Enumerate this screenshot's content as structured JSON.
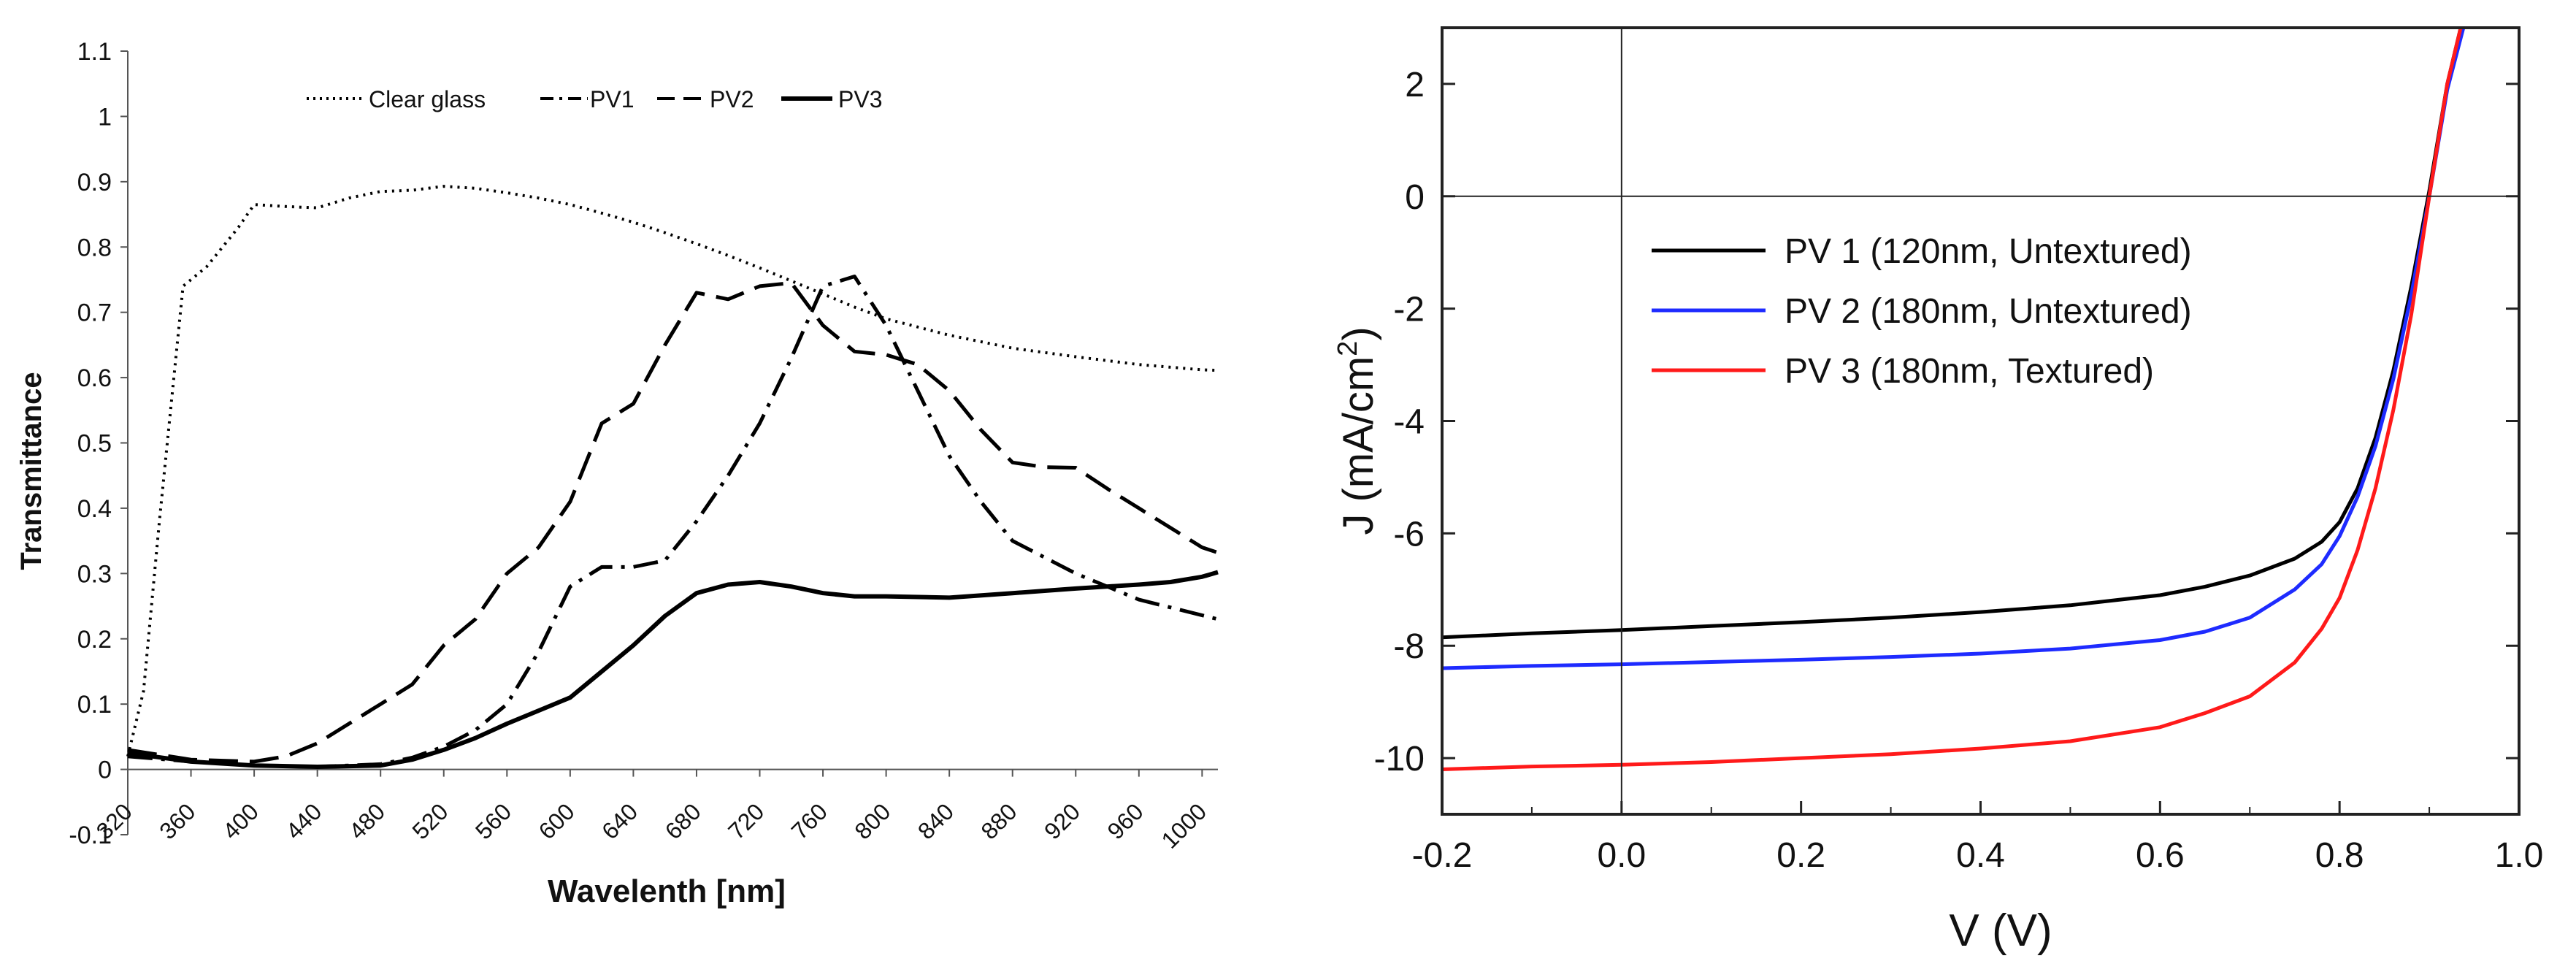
{
  "colors": {
    "background": "#ffffff",
    "axis": "#222222",
    "tick_text": "#111111",
    "left_series": "#000000",
    "pv1_black": "#000000",
    "pv2_blue": "#1e2bff",
    "pv3_red": "#ff1a1a"
  },
  "chart_data": [
    {
      "type": "line",
      "title": "",
      "xlabel": "Wavelenth [nm]",
      "ylabel": "Transmittance",
      "xlim": [
        320,
        1010
      ],
      "ylim": [
        -0.1,
        1.1
      ],
      "grid": false,
      "legend_position": "top-center",
      "x_ticks": [
        "320",
        "360",
        "400",
        "440",
        "480",
        "520",
        "560",
        "600",
        "640",
        "680",
        "720",
        "760",
        "800",
        "840",
        "880",
        "920",
        "960",
        "1000"
      ],
      "y_ticks": [
        "-0.1",
        "0",
        "0.1",
        "0.2",
        "0.3",
        "0.4",
        "0.5",
        "0.6",
        "0.7",
        "0.8",
        "0.9",
        "1",
        "1.1"
      ],
      "series": [
        {
          "name": "Clear glass",
          "style": "dotted",
          "x": [
            320,
            330,
            340,
            355,
            370,
            390,
            400,
            420,
            440,
            460,
            480,
            500,
            520,
            540,
            560,
            580,
            600,
            620,
            640,
            660,
            680,
            700,
            720,
            740,
            760,
            780,
            800,
            840,
            880,
            920,
            960,
            1000,
            1010
          ],
          "y": [
            0.02,
            0.12,
            0.38,
            0.74,
            0.77,
            0.83,
            0.865,
            0.862,
            0.86,
            0.875,
            0.885,
            0.887,
            0.893,
            0.89,
            0.883,
            0.875,
            0.865,
            0.852,
            0.838,
            0.822,
            0.805,
            0.787,
            0.768,
            0.748,
            0.728,
            0.708,
            0.69,
            0.665,
            0.645,
            0.632,
            0.62,
            0.612,
            0.611
          ]
        },
        {
          "name": "PV1",
          "style": "dashdot",
          "x": [
            320,
            360,
            400,
            440,
            480,
            500,
            520,
            540,
            560,
            580,
            600,
            620,
            640,
            660,
            680,
            700,
            720,
            740,
            760,
            780,
            800,
            820,
            840,
            860,
            880,
            920,
            960,
            1010
          ],
          "y": [
            0.02,
            0.012,
            0.006,
            0.004,
            0.008,
            0.018,
            0.035,
            0.06,
            0.1,
            0.18,
            0.28,
            0.31,
            0.31,
            0.32,
            0.38,
            0.45,
            0.53,
            0.63,
            0.74,
            0.755,
            0.68,
            0.58,
            0.48,
            0.41,
            0.35,
            0.3,
            0.26,
            0.23
          ]
        },
        {
          "name": "PV2",
          "style": "dashed",
          "x": [
            320,
            360,
            400,
            420,
            440,
            460,
            480,
            500,
            520,
            540,
            560,
            580,
            600,
            620,
            640,
            660,
            680,
            700,
            720,
            740,
            760,
            780,
            800,
            820,
            840,
            860,
            880,
            900,
            920,
            940,
            960,
            980,
            1000,
            1010
          ],
          "y": [
            0.03,
            0.015,
            0.012,
            0.02,
            0.04,
            0.07,
            0.1,
            0.13,
            0.19,
            0.23,
            0.3,
            0.34,
            0.41,
            0.53,
            0.56,
            0.65,
            0.73,
            0.72,
            0.74,
            0.745,
            0.68,
            0.64,
            0.635,
            0.62,
            0.58,
            0.52,
            0.47,
            0.463,
            0.462,
            0.43,
            0.4,
            0.37,
            0.34,
            0.332
          ]
        },
        {
          "name": "PV3",
          "style": "solid",
          "x": [
            320,
            360,
            400,
            440,
            480,
            500,
            520,
            540,
            560,
            580,
            600,
            620,
            640,
            660,
            680,
            700,
            720,
            740,
            760,
            780,
            800,
            840,
            880,
            920,
            960,
            980,
            1000,
            1010
          ],
          "y": [
            0.025,
            0.012,
            0.006,
            0.004,
            0.006,
            0.015,
            0.03,
            0.048,
            0.07,
            0.09,
            0.11,
            0.15,
            0.19,
            0.235,
            0.27,
            0.283,
            0.287,
            0.28,
            0.27,
            0.265,
            0.265,
            0.263,
            0.27,
            0.277,
            0.283,
            0.287,
            0.295,
            0.302
          ]
        }
      ]
    },
    {
      "type": "line",
      "title": "",
      "xlabel": "V (V)",
      "ylabel": "J (mA/cm",
      "ylabel_superscript": "2",
      "ylabel_suffix": ")",
      "xlim": [
        -0.2,
        1.0
      ],
      "ylim": [
        -11,
        3
      ],
      "grid": false,
      "legend_position": "middle-left",
      "x_ticks": [
        "-0.2",
        "0.0",
        "0.2",
        "0.4",
        "0.6",
        "0.8",
        "1.0"
      ],
      "y_ticks": [
        "2",
        "0",
        "-2",
        "-4",
        "-6",
        "-8",
        "-10"
      ],
      "series": [
        {
          "name": "PV 1 (120nm, Untextured)",
          "color": "#000000",
          "x": [
            -0.2,
            -0.1,
            0.0,
            0.1,
            0.2,
            0.3,
            0.4,
            0.5,
            0.6,
            0.65,
            0.7,
            0.75,
            0.78,
            0.8,
            0.82,
            0.84,
            0.86,
            0.88,
            0.9,
            0.92,
            0.935
          ],
          "y": [
            -7.85,
            -7.78,
            -7.72,
            -7.65,
            -7.58,
            -7.5,
            -7.4,
            -7.28,
            -7.1,
            -6.95,
            -6.75,
            -6.45,
            -6.15,
            -5.8,
            -5.2,
            -4.3,
            -3.1,
            -1.6,
            0.1,
            2.0,
            3.0
          ]
        },
        {
          "name": "PV 2 (180nm, Untextured)",
          "color": "#1e2bff",
          "x": [
            -0.2,
            -0.1,
            0.0,
            0.1,
            0.2,
            0.3,
            0.4,
            0.5,
            0.6,
            0.65,
            0.7,
            0.75,
            0.78,
            0.8,
            0.82,
            0.84,
            0.86,
            0.88,
            0.9,
            0.92,
            0.938
          ],
          "y": [
            -8.4,
            -8.36,
            -8.33,
            -8.29,
            -8.25,
            -8.2,
            -8.14,
            -8.05,
            -7.9,
            -7.75,
            -7.5,
            -7.0,
            -6.55,
            -6.05,
            -5.35,
            -4.45,
            -3.25,
            -1.75,
            0.0,
            1.9,
            3.0
          ]
        },
        {
          "name": "PV 3 (180nm, Textured)",
          "color": "#ff1a1a",
          "x": [
            -0.2,
            -0.1,
            0.0,
            0.1,
            0.2,
            0.3,
            0.4,
            0.5,
            0.6,
            0.65,
            0.7,
            0.75,
            0.78,
            0.8,
            0.82,
            0.84,
            0.86,
            0.88,
            0.9,
            0.92,
            0.935
          ],
          "y": [
            -10.2,
            -10.15,
            -10.12,
            -10.07,
            -10.0,
            -9.93,
            -9.83,
            -9.7,
            -9.45,
            -9.2,
            -8.9,
            -8.3,
            -7.7,
            -7.15,
            -6.3,
            -5.2,
            -3.8,
            -2.1,
            0.0,
            2.0,
            3.0
          ]
        }
      ]
    }
  ]
}
